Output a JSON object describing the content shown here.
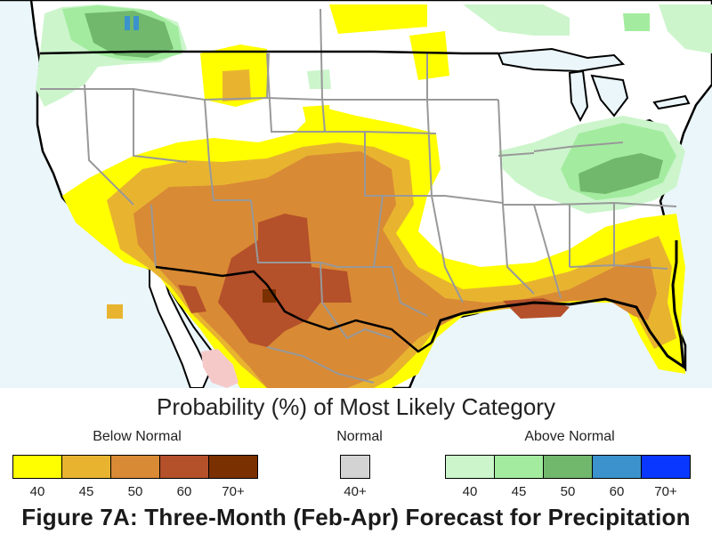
{
  "legend": {
    "title": "Probability (%) of Most Likely Category",
    "groups": [
      {
        "name": "Below Normal",
        "ticks": [
          "40",
          "45",
          "50",
          "60",
          "70+"
        ],
        "colors": [
          "#ffff00",
          "#e8b430",
          "#d98a35",
          "#b4502a",
          "#7a3000"
        ]
      },
      {
        "name": "Normal",
        "ticks": [
          "40+"
        ],
        "colors": [
          "#d3d3d3"
        ]
      },
      {
        "name": "Above Normal",
        "ticks": [
          "40",
          "45",
          "50",
          "60",
          "70+"
        ],
        "colors": [
          "#ccf5cc",
          "#a3ec9f",
          "#71b86d",
          "#3b92cc",
          "#0a37ff"
        ]
      }
    ]
  },
  "caption": "Figure 7A: Three-Month (Feb-Apr) Forecast for Precipitation"
}
